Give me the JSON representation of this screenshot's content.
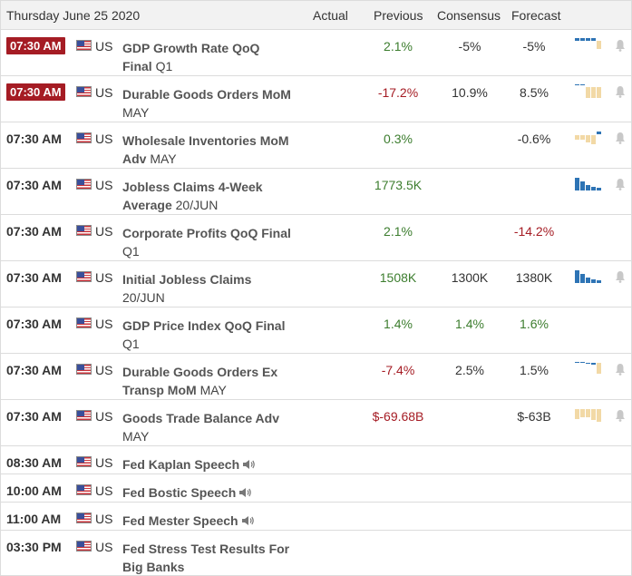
{
  "header": {
    "date": "Thursday June 25 2020",
    "actual": "Actual",
    "previous": "Previous",
    "consensus": "Consensus",
    "forecast": "Forecast"
  },
  "rows": [
    {
      "time": "07:30 AM",
      "badge": true,
      "country": "US",
      "event1": "GDP Growth Rate QoQ",
      "event2": "Final",
      "period": "Q1",
      "previous": "2.1%",
      "previous_color": "green",
      "consensus": "-5%",
      "consensus_color": "black",
      "forecast": "-5%",
      "forecast_color": "black",
      "spark": "gdp",
      "bell": true
    },
    {
      "time": "07:30 AM",
      "badge": true,
      "country": "US",
      "event1": "Durable Goods Orders MoM",
      "event2": "",
      "period": "MAY",
      "previous": "-17.2%",
      "previous_color": "red",
      "consensus": "10.9%",
      "consensus_color": "black",
      "forecast": "8.5%",
      "forecast_color": "black",
      "spark": "durable",
      "bell": true
    },
    {
      "time": "07:30 AM",
      "badge": false,
      "country": "US",
      "event1": "Wholesale Inventories MoM",
      "event2": "Adv",
      "period": "MAY",
      "previous": "0.3%",
      "previous_color": "green",
      "consensus": "",
      "consensus_color": "black",
      "forecast": "-0.6%",
      "forecast_color": "black",
      "spark": "wholesale",
      "bell": true
    },
    {
      "time": "07:30 AM",
      "badge": false,
      "country": "US",
      "event1": "Jobless Claims 4-Week",
      "event2": "Average",
      "period": "20/JUN",
      "previous": "1773.5K",
      "previous_color": "green",
      "consensus": "",
      "consensus_color": "black",
      "forecast": "",
      "forecast_color": "black",
      "spark": "jobless4",
      "bell": true
    },
    {
      "time": "07:30 AM",
      "badge": false,
      "country": "US",
      "event1": "Corporate Profits QoQ Final",
      "event2": "",
      "period": "Q1",
      "previous": "2.1%",
      "previous_color": "green",
      "consensus": "",
      "consensus_color": "black",
      "forecast": "-14.2%",
      "forecast_color": "red",
      "spark": "",
      "bell": false
    },
    {
      "time": "07:30 AM",
      "badge": false,
      "country": "US",
      "event1": "Initial Jobless Claims",
      "event2": "",
      "period": "20/JUN",
      "previous": "1508K",
      "previous_color": "green",
      "consensus": "1300K",
      "consensus_color": "black",
      "forecast": "1380K",
      "forecast_color": "black",
      "spark": "initial",
      "bell": true
    },
    {
      "time": "07:30 AM",
      "badge": false,
      "country": "US",
      "event1": "GDP Price Index QoQ Final",
      "event2": "",
      "period": "Q1",
      "previous": "1.4%",
      "previous_color": "green",
      "consensus": "1.4%",
      "consensus_color": "green",
      "forecast": "1.6%",
      "forecast_color": "green",
      "spark": "",
      "bell": false
    },
    {
      "time": "07:30 AM",
      "badge": false,
      "country": "US",
      "event1": "Durable Goods Orders Ex",
      "event2": "Transp MoM",
      "period": "MAY",
      "previous": "-7.4%",
      "previous_color": "red",
      "consensus": "2.5%",
      "consensus_color": "black",
      "forecast": "1.5%",
      "forecast_color": "black",
      "spark": "durex",
      "bell": true
    },
    {
      "time": "07:30 AM",
      "badge": false,
      "country": "US",
      "event1": "Goods Trade Balance Adv",
      "event2": "",
      "period": "MAY",
      "previous": "$-69.68B",
      "previous_color": "red",
      "consensus": "",
      "consensus_color": "black",
      "forecast": "$-63B",
      "forecast_color": "black",
      "spark": "trade",
      "bell": true
    },
    {
      "time": "08:30 AM",
      "badge": false,
      "country": "US",
      "event1": "Fed Kaplan Speech",
      "event2": "",
      "period": "",
      "previous": "",
      "previous_color": "black",
      "consensus": "",
      "consensus_color": "black",
      "forecast": "",
      "forecast_color": "black",
      "spark": "",
      "bell": false,
      "speaker": true
    },
    {
      "time": "10:00 AM",
      "badge": false,
      "country": "US",
      "event1": "Fed Bostic Speech",
      "event2": "",
      "period": "",
      "previous": "",
      "previous_color": "black",
      "consensus": "",
      "consensus_color": "black",
      "forecast": "",
      "forecast_color": "black",
      "spark": "",
      "bell": false,
      "speaker": true
    },
    {
      "time": "11:00 AM",
      "badge": false,
      "country": "US",
      "event1": "Fed Mester Speech",
      "event2": "",
      "period": "",
      "previous": "",
      "previous_color": "black",
      "consensus": "",
      "consensus_color": "black",
      "forecast": "",
      "forecast_color": "black",
      "spark": "",
      "bell": false,
      "speaker": true
    },
    {
      "time": "03:30 PM",
      "badge": false,
      "country": "US",
      "event1": "Fed Stress Test Results For",
      "event2": "Big Banks",
      "period": "",
      "previous": "",
      "previous_color": "black",
      "consensus": "",
      "consensus_color": "black",
      "forecast": "",
      "forecast_color": "black",
      "spark": "",
      "bell": false
    }
  ],
  "colors": {
    "accent_red": "#a51c24",
    "positive_green": "#3c7d2e",
    "spark_blue": "#2e74b5",
    "spark_tan": "#f2d9a6"
  }
}
